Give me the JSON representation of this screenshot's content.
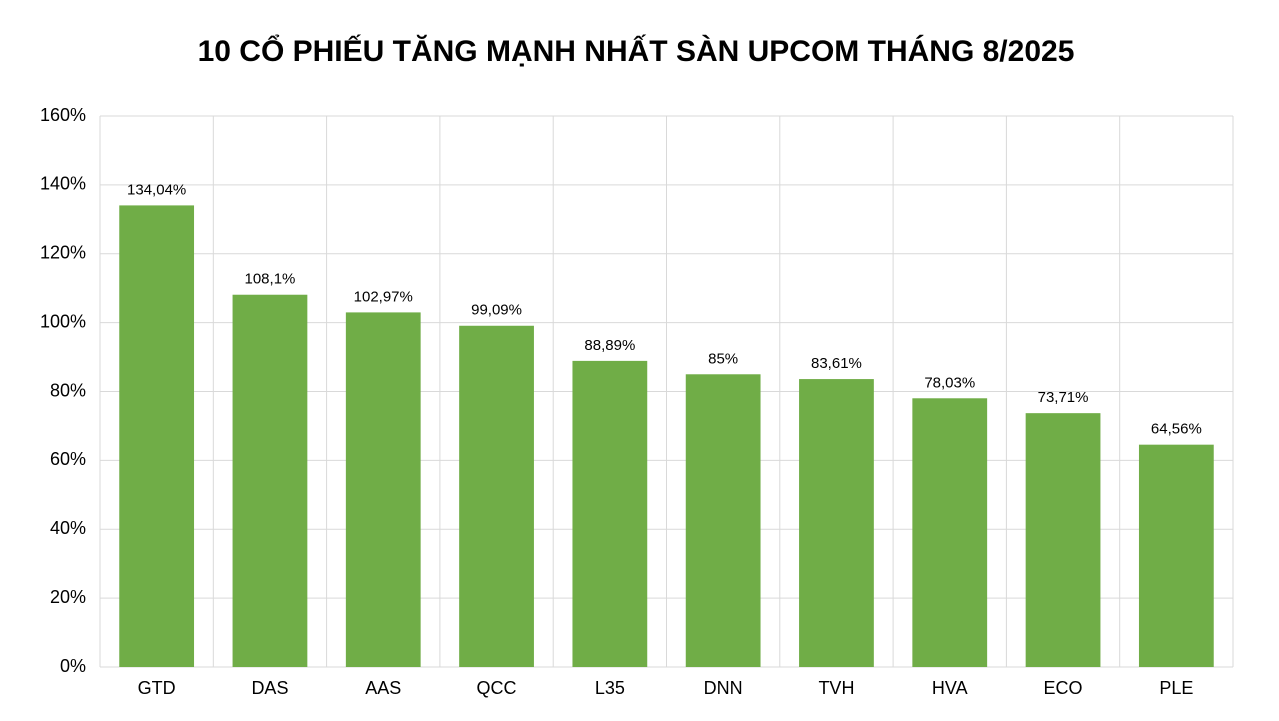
{
  "chart_data": {
    "type": "bar",
    "title": "10 CỔ PHIẾU TĂNG MẠNH NHẤT SÀN UPCOM THÁNG 8/2025",
    "categories": [
      "GTD",
      "DAS",
      "AAS",
      "QCC",
      "L35",
      "DNN",
      "TVH",
      "HVA",
      "ECO",
      "PLE"
    ],
    "values": [
      134.04,
      108.1,
      102.97,
      99.09,
      88.89,
      85,
      83.61,
      78.03,
      73.71,
      64.56
    ],
    "value_labels": [
      "134,04%",
      "108,1%",
      "102,97%",
      "99,09%",
      "88,89%",
      "85%",
      "83,61%",
      "78,03%",
      "73,71%",
      "64,56%"
    ],
    "color": "#70ad47",
    "ylim": [
      0,
      160
    ],
    "yticks": [
      {
        "value": 0,
        "label": "0%"
      },
      {
        "value": 20,
        "label": "20%"
      },
      {
        "value": 40,
        "label": "40%"
      },
      {
        "value": 60,
        "label": "60%"
      },
      {
        "value": 80,
        "label": "80%"
      },
      {
        "value": 100,
        "label": "100%"
      },
      {
        "value": 120,
        "label": "120%"
      },
      {
        "value": 140,
        "label": "140%"
      },
      {
        "value": 160,
        "label": "160%"
      }
    ],
    "grid": true
  }
}
